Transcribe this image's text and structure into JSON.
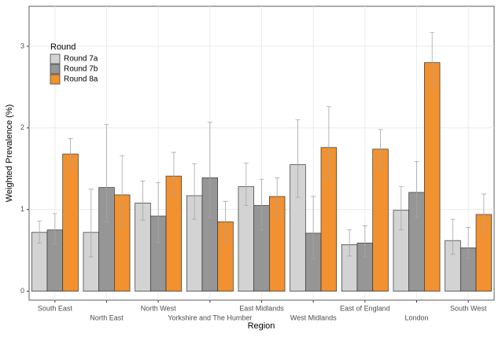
{
  "chart_data": {
    "type": "bar",
    "x_label": "Region",
    "y_label": "Weighted Prevalence (%)",
    "legend_title": "Round",
    "categories": [
      "South East",
      "North East",
      "North West",
      "Yorkshire and The Humber",
      "East Midlands",
      "West Midlands",
      "East of England",
      "London",
      "South West"
    ],
    "series": [
      {
        "name": "Round 7a",
        "color": "#d3d3d3",
        "values": [
          0.72,
          0.72,
          1.08,
          1.17,
          1.28,
          1.55,
          0.57,
          0.99,
          0.62
        ],
        "lower": [
          0.59,
          0.42,
          0.87,
          0.88,
          1.05,
          1.15,
          0.43,
          0.75,
          0.45
        ],
        "upper": [
          0.86,
          1.25,
          1.35,
          1.56,
          1.57,
          2.1,
          0.75,
          1.28,
          0.88
        ]
      },
      {
        "name": "Round 7b",
        "color": "#969696",
        "values": [
          0.75,
          1.27,
          0.92,
          1.39,
          1.05,
          0.71,
          0.59,
          1.21,
          0.53
        ],
        "lower": [
          0.58,
          0.85,
          0.6,
          0.9,
          0.75,
          0.4,
          0.42,
          0.9,
          0.4
        ],
        "upper": [
          0.95,
          2.04,
          1.33,
          2.07,
          1.37,
          1.16,
          0.8,
          1.59,
          0.78
        ]
      },
      {
        "name": "Round 8a",
        "color": "#f29130",
        "values": [
          1.68,
          1.18,
          1.41,
          0.85,
          1.16,
          1.76,
          1.74,
          2.8,
          0.94
        ],
        "lower": [
          1.52,
          0.8,
          1.17,
          0.6,
          0.92,
          1.4,
          1.5,
          2.5,
          0.75
        ],
        "upper": [
          1.87,
          1.66,
          1.7,
          1.1,
          1.39,
          2.26,
          1.98,
          3.17,
          1.19
        ]
      }
    ],
    "ylim": [
      -0.11,
      3.49
    ],
    "yticks": [
      0,
      1,
      2,
      3
    ],
    "grid": true,
    "legend": "top-left"
  }
}
